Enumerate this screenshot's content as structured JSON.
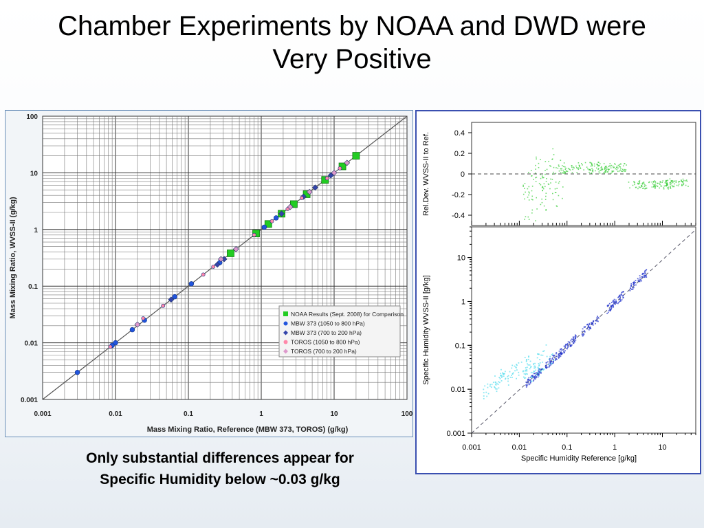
{
  "slide": {
    "title_line1": "Chamber Experiments by NOAA and DWD were",
    "title_line2": "Very Positive",
    "caption_line1": "Only substantial differences appear for",
    "caption_line2": "Specific Humidity below ~0.03 g/kg"
  },
  "colors": {
    "noaa": "#22cc22",
    "mbw_low": "#2255dd",
    "mbw_high": "#3344aa",
    "toros_low": "#ff88aa",
    "toros_high": "#dd99cc",
    "right_frame": "#3a4fb0",
    "scatter_green": "#33cc33",
    "scatter_blue": "#2233cc",
    "scatter_cyan": "#55ddee"
  },
  "chart_data": [
    {
      "type": "scatter",
      "xscale": "log",
      "yscale": "log",
      "xlim": [
        0.001,
        100
      ],
      "ylim": [
        0.001,
        100
      ],
      "xlabel": "Mass Mixing Ratio, Reference (MBW 373, TOROS)    (g/kg)",
      "ylabel": "Mass Mixing Ratio, WVSS-II   (g/kg)",
      "x_ticks": [
        "0.001",
        "0.01",
        "0.1",
        "1",
        "10",
        "100"
      ],
      "y_ticks": [
        "0.001",
        "0.01",
        "0.1",
        "1",
        "10",
        "100"
      ],
      "grid": true,
      "legend_position": "lower-right",
      "series": [
        {
          "name": "NOAA Results (Sept. 2008) for Comparison",
          "marker": "square",
          "color": "#22cc22",
          "points": [
            [
              0.38,
              0.38
            ],
            [
              0.85,
              0.85
            ],
            [
              1.25,
              1.25
            ],
            [
              1.9,
              1.9
            ],
            [
              2.8,
              2.8
            ],
            [
              4.2,
              4.2
            ],
            [
              7.5,
              7.5
            ],
            [
              13,
              13
            ],
            [
              20,
              20
            ]
          ]
        },
        {
          "name": "MBW 373 (1050 to 800 hPa)",
          "marker": "circle",
          "color": "#2255dd",
          "points": [
            [
              0.003,
              0.003
            ],
            [
              0.009,
              0.009
            ],
            [
              0.01,
              0.01
            ],
            [
              0.017,
              0.017
            ],
            [
              0.025,
              0.025
            ],
            [
              0.065,
              0.065
            ],
            [
              0.11,
              0.11
            ],
            [
              0.27,
              0.26
            ],
            [
              1.1,
              1.1
            ],
            [
              1.6,
              1.6
            ]
          ]
        },
        {
          "name": "MBW 373 (700 to 200 hPa)",
          "marker": "diamond",
          "color": "#3344aa",
          "points": [
            [
              0.058,
              0.058
            ],
            [
              0.25,
              0.24
            ],
            [
              0.31,
              0.3
            ],
            [
              1.9,
              1.9
            ],
            [
              3.8,
              3.8
            ],
            [
              5.5,
              5.5
            ],
            [
              9,
              9
            ]
          ]
        },
        {
          "name": "TOROS (1050 to 800 hPa)",
          "marker": "circle",
          "color": "#ff88aa",
          "points": [
            [
              0.0085,
              0.0085
            ],
            [
              0.024,
              0.027
            ],
            [
              0.045,
              0.045
            ],
            [
              0.16,
              0.16
            ],
            [
              0.22,
              0.22
            ],
            [
              0.8,
              0.8
            ],
            [
              1.4,
              1.4
            ],
            [
              2.3,
              2.3
            ],
            [
              3.6,
              3.6
            ],
            [
              8,
              8
            ],
            [
              12,
              12
            ]
          ]
        },
        {
          "name": "TOROS (700 to 200 hPa)",
          "marker": "diamond",
          "color": "#dd99cc",
          "points": [
            [
              0.02,
              0.021
            ],
            [
              0.28,
              0.3
            ],
            [
              0.45,
              0.45
            ],
            [
              2.5,
              2.5
            ],
            [
              4.6,
              4.6
            ],
            [
              10,
              10
            ],
            [
              15,
              15
            ]
          ]
        }
      ]
    },
    {
      "type": "scatter",
      "xscale": "log",
      "xlim": [
        0.001,
        50
      ],
      "ylim": [
        -0.5,
        0.5
      ],
      "ylabel": "Rel.Dev. WVSS-II to Ref.",
      "y_ticks": [
        "0.4",
        "0.2",
        "0",
        "-0.2",
        "-0.4"
      ],
      "reference_line": 0,
      "series": [
        {
          "color": "#33cc33",
          "description_values": [
            [
              0.02,
              -0.2
            ],
            [
              0.03,
              0
            ],
            [
              0.05,
              -0.1
            ],
            [
              0.1,
              0.05
            ],
            [
              0.3,
              0.08
            ],
            [
              0.5,
              0.05
            ],
            [
              1,
              0.07
            ],
            [
              3,
              -0.1
            ],
            [
              10,
              -0.1
            ],
            [
              20,
              -0.08
            ]
          ]
        }
      ]
    },
    {
      "type": "scatter",
      "xscale": "log",
      "yscale": "log",
      "xlim": [
        0.001,
        50
      ],
      "ylim": [
        0.001,
        50
      ],
      "xlabel": "Specific Humidity Reference [g/kg]",
      "ylabel": "Specific Humidity  WVSS-II [g/kg]",
      "x_ticks": [
        "0.001",
        "0.01",
        "0.1",
        "1",
        "10"
      ],
      "y_ticks": [
        "10",
        "1",
        "0.1",
        "0.01",
        "0.001"
      ],
      "reference_line": "1:1",
      "series": [
        {
          "color": "#2233cc",
          "description_values": [
            [
              0.02,
              0.02
            ],
            [
              0.05,
              0.05
            ],
            [
              0.1,
              0.1
            ],
            [
              0.3,
              0.3
            ],
            [
              1,
              1
            ],
            [
              3,
              3
            ]
          ]
        },
        {
          "color": "#55ddee",
          "description_values": [
            [
              0.003,
              0.015
            ],
            [
              0.005,
              0.02
            ],
            [
              0.01,
              0.03
            ],
            [
              0.02,
              0.04
            ],
            [
              0.03,
              0.035
            ]
          ]
        }
      ]
    }
  ]
}
